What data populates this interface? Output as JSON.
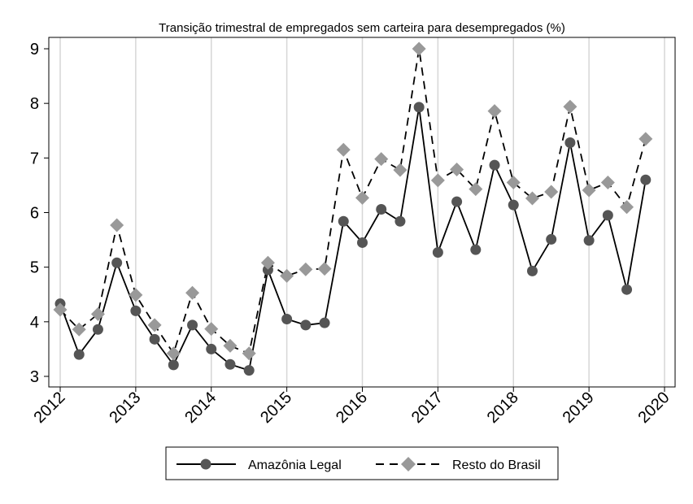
{
  "chart_data": {
    "type": "line",
    "title": "Transição trimestral de empregados sem carteira para desempregados (%)",
    "xlabel": "",
    "ylabel": "",
    "xlim": [
      2012,
      2020
    ],
    "ylim": [
      3,
      9
    ],
    "xticks": [
      2012,
      2013,
      2014,
      2015,
      2016,
      2017,
      2018,
      2019,
      2020
    ],
    "xtick_labels": [
      "2012",
      "2013",
      "2014",
      "2015",
      "2016",
      "2017",
      "2018",
      "2019",
      "2020"
    ],
    "yticks": [
      3,
      4,
      5,
      6,
      7,
      8,
      9
    ],
    "ytick_labels": [
      "3",
      "4",
      "5",
      "6",
      "7",
      "8",
      "9"
    ],
    "grid": "vertical",
    "legend_position": "bottom",
    "x": [
      2012.0,
      2012.25,
      2012.5,
      2012.75,
      2013.0,
      2013.25,
      2013.5,
      2013.75,
      2014.0,
      2014.25,
      2014.5,
      2014.75,
      2015.0,
      2015.25,
      2015.5,
      2015.75,
      2016.0,
      2016.25,
      2016.5,
      2016.75,
      2017.0,
      2017.25,
      2017.5,
      2017.75,
      2018.0,
      2018.25,
      2018.5,
      2018.75,
      2019.0,
      2019.25,
      2019.5,
      2019.75
    ],
    "series": [
      {
        "name": "Amazônia Legal",
        "color": "#000000",
        "marker_color": "#555555",
        "marker": "circle",
        "line_style": "solid",
        "values": [
          4.33,
          3.4,
          3.86,
          5.08,
          4.2,
          3.68,
          3.21,
          3.94,
          3.5,
          3.22,
          3.11,
          4.95,
          4.05,
          3.94,
          3.98,
          5.84,
          5.45,
          6.06,
          5.84,
          7.93,
          5.27,
          6.2,
          5.32,
          6.87,
          6.14,
          4.93,
          5.51,
          7.28,
          5.49,
          5.95,
          4.59,
          6.6
        ]
      },
      {
        "name": "Resto do Brasil",
        "color": "#000000",
        "marker_color": "#999999",
        "marker": "diamond",
        "line_style": "dashed",
        "values": [
          4.22,
          3.86,
          4.14,
          5.77,
          4.49,
          3.94,
          3.42,
          4.53,
          3.87,
          3.56,
          3.42,
          5.08,
          4.84,
          4.96,
          4.97,
          7.15,
          6.27,
          6.98,
          6.78,
          9.0,
          6.59,
          6.79,
          6.43,
          7.86,
          6.55,
          6.26,
          6.38,
          7.94,
          6.41,
          6.55,
          6.1,
          7.35
        ]
      }
    ]
  }
}
